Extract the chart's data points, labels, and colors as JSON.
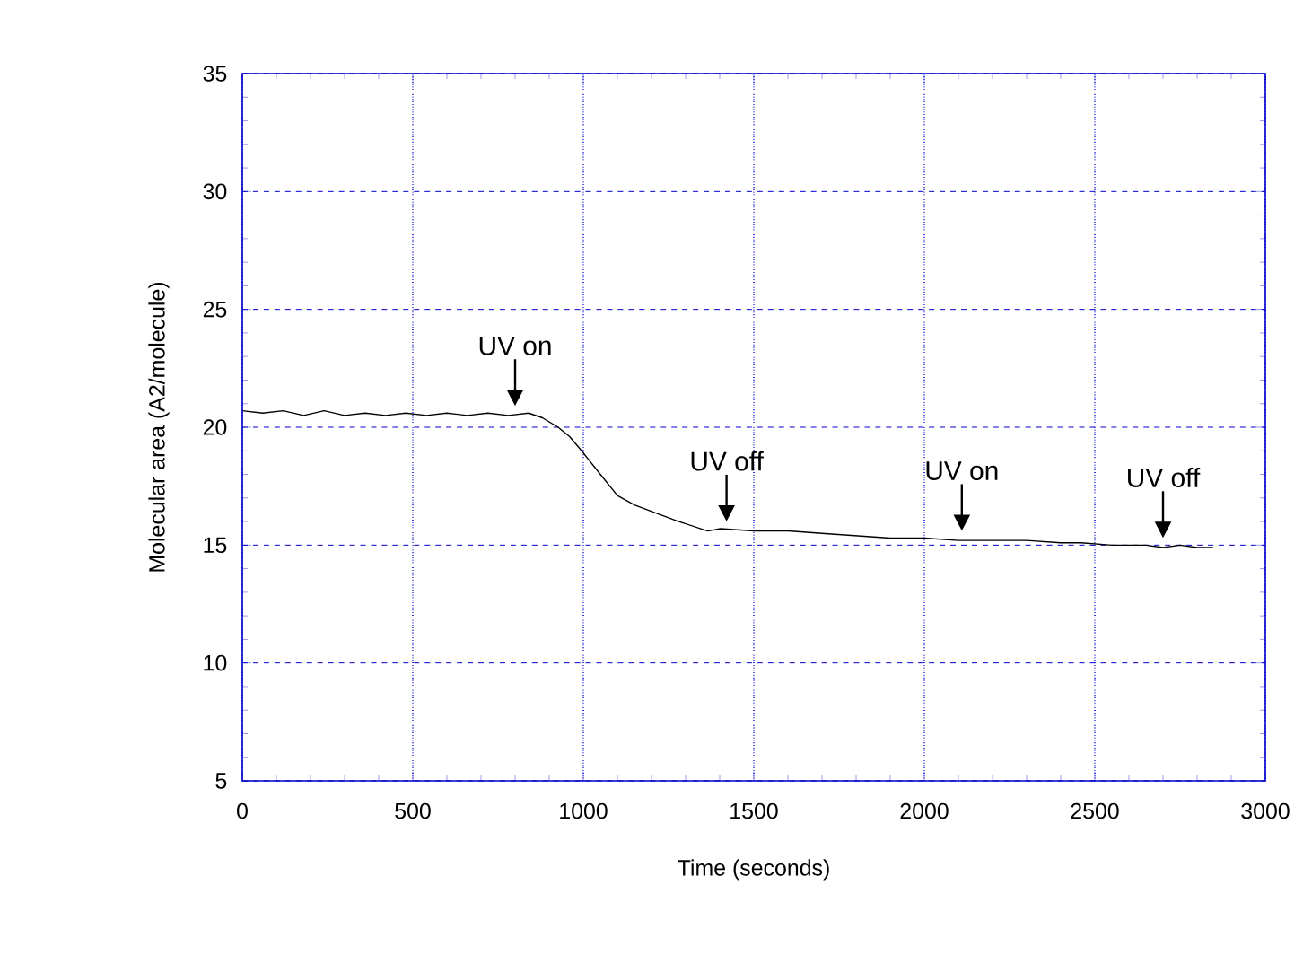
{
  "chart_data": {
    "type": "line",
    "xlabel": "Time (seconds)",
    "ylabel": "Molecular area (A2/molecule)",
    "x": [
      0,
      60,
      120,
      180,
      240,
      300,
      360,
      420,
      480,
      540,
      600,
      660,
      720,
      780,
      840,
      880,
      926,
      960,
      995,
      1050,
      1100,
      1150,
      1206,
      1280,
      1365,
      1402,
      1500,
      1600,
      1700,
      1800,
      1900,
      2000,
      2100,
      2200,
      2300,
      2400,
      2460,
      2550,
      2650,
      2700,
      2750,
      2800,
      2846
    ],
    "series": [
      {
        "color": "#000000",
        "values": [
          20.7,
          20.6,
          20.7,
          20.5,
          20.7,
          20.5,
          20.6,
          20.5,
          20.6,
          20.5,
          20.6,
          20.5,
          20.6,
          20.5,
          20.6,
          20.4,
          20.0,
          19.6,
          19.0,
          18.0,
          17.1,
          16.7,
          16.4,
          16.0,
          15.6,
          15.7,
          15.6,
          15.6,
          15.5,
          15.4,
          15.3,
          15.3,
          15.2,
          15.2,
          15.2,
          15.1,
          15.1,
          15.0,
          15.0,
          14.9,
          15.0,
          14.9,
          14.9
        ]
      }
    ],
    "xlim": [
      0,
      3000
    ],
    "ylim": [
      5,
      35
    ],
    "xticks": [
      0,
      500,
      1000,
      1500,
      2000,
      2500,
      3000
    ],
    "yticks": [
      5,
      10,
      15,
      20,
      25,
      30,
      35
    ],
    "grid": true,
    "annotations": [
      {
        "text": "UV on",
        "x": 800,
        "y": 20.6
      },
      {
        "text": "UV off",
        "x": 1420,
        "y": 15.7
      },
      {
        "text": "UV on",
        "x": 2110,
        "y": 15.3
      },
      {
        "text": "UV off",
        "x": 2700,
        "y": 15.0
      }
    ]
  }
}
